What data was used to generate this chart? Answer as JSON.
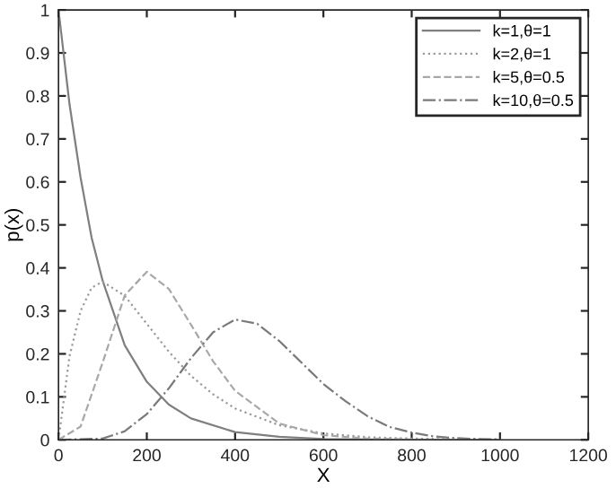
{
  "chart_data": {
    "type": "line",
    "xlabel": "X",
    "ylabel": "p(x)",
    "xlim": [
      0,
      1200
    ],
    "xticks": [
      0,
      200,
      400,
      600,
      800,
      1000,
      1200
    ],
    "ylim": [
      0,
      1
    ],
    "yticks": [
      0,
      0.1,
      0.2,
      0.3,
      0.4,
      0.5,
      0.6,
      0.7,
      0.8,
      0.9,
      1
    ],
    "grid": false,
    "legend": "top right",
    "marker": "none",
    "series": [
      {
        "name": "k=1,θ=1",
        "color": "#7f7f7f",
        "line_style": "solid",
        "x": [
          0,
          25,
          50,
          75,
          100,
          150,
          200,
          250,
          300,
          400,
          500,
          600,
          800,
          1000
        ],
        "values": [
          1,
          0.78,
          0.61,
          0.47,
          0.37,
          0.22,
          0.135,
          0.082,
          0.05,
          0.018,
          0.007,
          0.002,
          0,
          0
        ]
      },
      {
        "name": "k=2,θ=1",
        "color": "#9a9a9a",
        "line_style": "dotted",
        "x": [
          0,
          25,
          50,
          75,
          100,
          150,
          200,
          250,
          300,
          350,
          400,
          500,
          600,
          700,
          800,
          1000
        ],
        "values": [
          0,
          0.195,
          0.3,
          0.354,
          0.368,
          0.335,
          0.27,
          0.205,
          0.149,
          0.106,
          0.073,
          0.034,
          0.015,
          0.006,
          0.003,
          0
        ]
      },
      {
        "name": "k=5,θ=0.5",
        "color": "#a8a8a8",
        "line_style": "dashed",
        "x": [
          0,
          50,
          100,
          150,
          200,
          250,
          300,
          350,
          400,
          500,
          600,
          700,
          800,
          1000
        ],
        "values": [
          0,
          0.031,
          0.18,
          0.336,
          0.391,
          0.351,
          0.268,
          0.183,
          0.114,
          0.038,
          0.011,
          0.003,
          0.001,
          0
        ]
      },
      {
        "name": "k=10,θ=0.5",
        "color": "#7a7a7a",
        "line_style": "dashdot",
        "x": [
          0,
          100,
          150,
          200,
          250,
          300,
          350,
          400,
          450,
          500,
          550,
          600,
          650,
          700,
          750,
          800,
          850,
          900,
          950,
          1000
        ],
        "values": [
          0,
          0.003,
          0.02,
          0.06,
          0.12,
          0.19,
          0.25,
          0.28,
          0.27,
          0.23,
          0.18,
          0.13,
          0.09,
          0.055,
          0.03,
          0.017,
          0.008,
          0.004,
          0.002,
          0.001
        ]
      }
    ]
  }
}
